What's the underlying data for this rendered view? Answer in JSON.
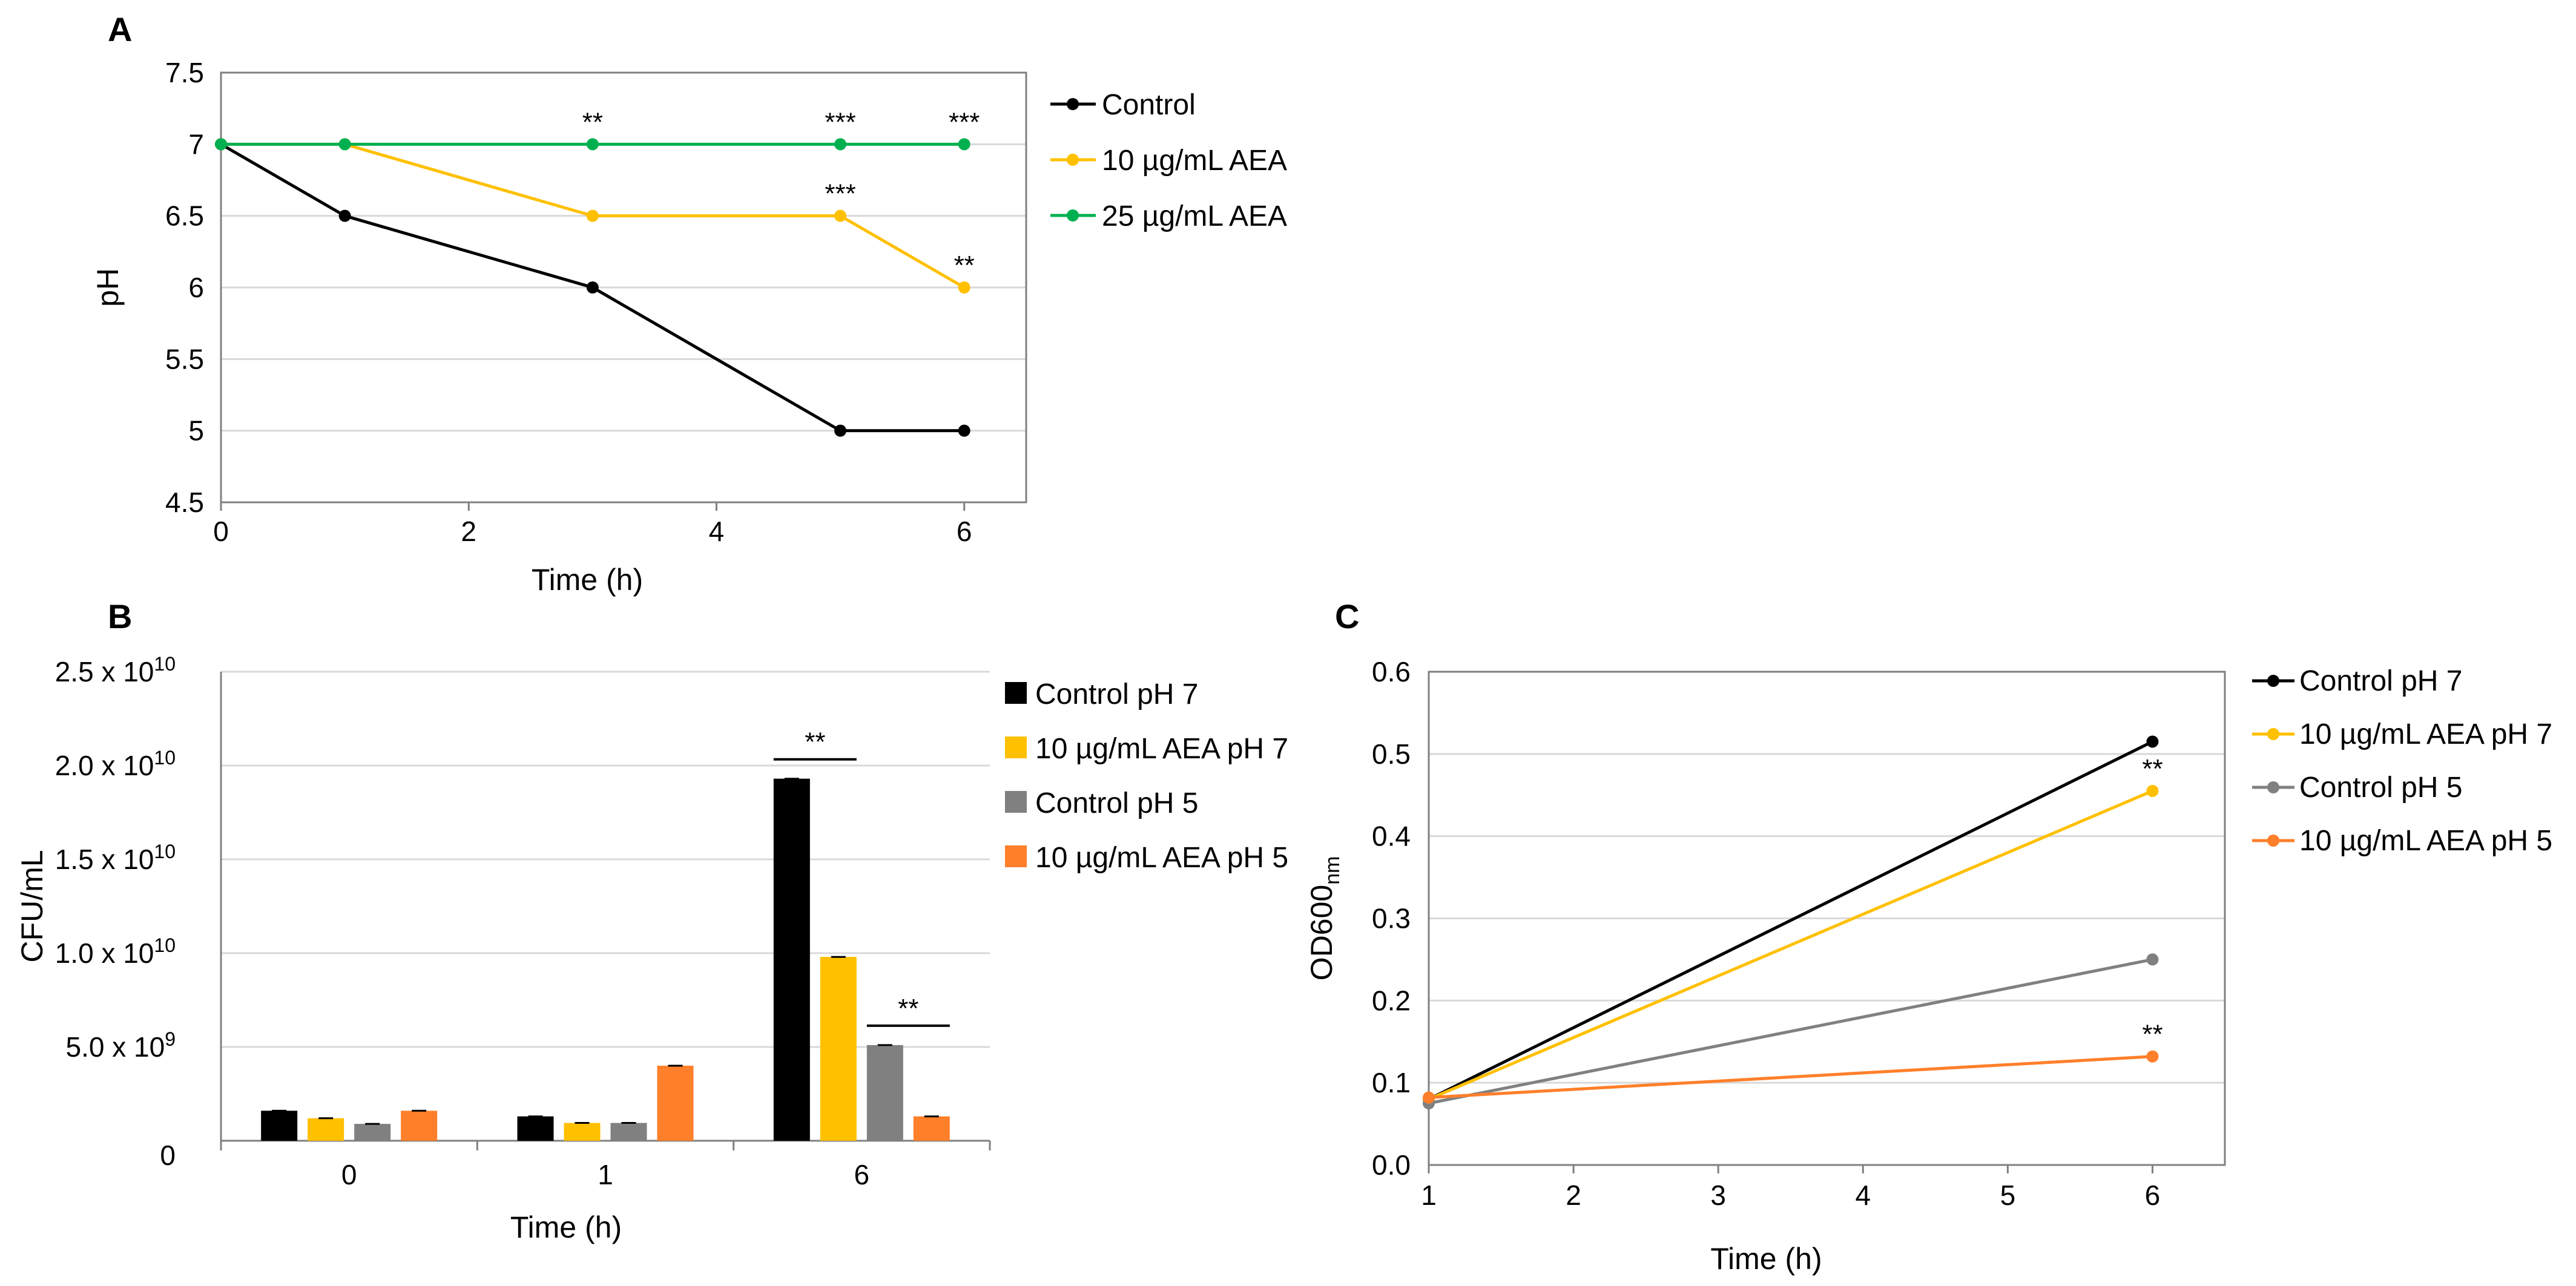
{
  "chart_data": [
    {
      "panel": "A",
      "type": "line",
      "title": "",
      "xlabel": "Time (h)",
      "ylabel": "pH",
      "xlim": [
        0,
        6.5
      ],
      "ylim": [
        4.5,
        7.5
      ],
      "xticks": [
        "0",
        "2",
        "4",
        "6"
      ],
      "yticks": [
        "4.5",
        "5",
        "5.5",
        "6",
        "6.5",
        "7",
        "7.5"
      ],
      "grid": true,
      "legend_position": "right",
      "series": [
        {
          "name": "Control",
          "color": "#000000",
          "x": [
            0,
            1,
            3,
            5,
            6
          ],
          "y": [
            7,
            6.5,
            6,
            5,
            5
          ]
        },
        {
          "name": "10 µg/mL AEA",
          "color": "#FFC000",
          "x": [
            0,
            1,
            3,
            5,
            6
          ],
          "y": [
            7,
            7,
            6.5,
            6.5,
            6
          ]
        },
        {
          "name": "25 µg/mL AEA",
          "color": "#00B050",
          "x": [
            0,
            1,
            3,
            5,
            6
          ],
          "y": [
            7,
            7,
            7,
            7,
            7
          ]
        }
      ],
      "annotations": [
        {
          "text": "**",
          "x": 3,
          "y": 7
        },
        {
          "text": "***",
          "x": 5,
          "y": 7
        },
        {
          "text": "***",
          "x": 6,
          "y": 7
        },
        {
          "text": "***",
          "x": 5,
          "y": 6.5
        },
        {
          "text": "**",
          "x": 6,
          "y": 6
        }
      ]
    },
    {
      "panel": "B",
      "type": "bar",
      "title": "",
      "xlabel": "Time (h)",
      "ylabel": "CFU/mL",
      "categories": [
        "0",
        "1",
        "6"
      ],
      "ylim": [
        0,
        25000000000
      ],
      "yticks": [
        {
          "mant": "0",
          "exp": ""
        },
        {
          "mant": "5.0 x 10",
          "exp": "9"
        },
        {
          "mant": "1.0 x 10",
          "exp": "10"
        },
        {
          "mant": "1.5 x 10",
          "exp": "10"
        },
        {
          "mant": "2.0 x 10",
          "exp": "10"
        },
        {
          "mant": "2.5 x 10",
          "exp": "10"
        }
      ],
      "grid": true,
      "legend_position": "right",
      "series": [
        {
          "name": "Control pH 7",
          "color": "#000000",
          "values": [
            1600000000,
            1300000000,
            19300000000
          ]
        },
        {
          "name": "10 µg/mL AEA pH 7",
          "color": "#FFC000",
          "values": [
            1200000000,
            950000000,
            9800000000
          ]
        },
        {
          "name": "Control pH 5",
          "color": "#808080",
          "values": [
            900000000,
            950000000,
            5100000000
          ]
        },
        {
          "name": "10 µg/mL AEA pH 5",
          "color": "#FF7F2A",
          "values": [
            1600000000,
            4000000000,
            1300000000
          ]
        }
      ],
      "annotations": [
        {
          "text": "**",
          "category": "6",
          "between": [
            "Control pH 7",
            "10 µg/mL AEA pH 7"
          ]
        },
        {
          "text": "**",
          "category": "6",
          "between": [
            "Control pH 5",
            "10 µg/mL AEA pH 5"
          ]
        }
      ]
    },
    {
      "panel": "C",
      "type": "line",
      "title": "",
      "xlabel": "Time (h)",
      "ylabel_main": "OD",
      "ylabel_num": "600",
      "ylabel_sub": "nm",
      "xlim": [
        1,
        6.5
      ],
      "ylim": [
        0,
        0.6
      ],
      "xticks": [
        "1",
        "2",
        "3",
        "4",
        "5",
        "6"
      ],
      "yticks": [
        "0.0",
        "0.1",
        "0.2",
        "0.3",
        "0.4",
        "0.5",
        "0.6"
      ],
      "grid": true,
      "legend_position": "right",
      "series": [
        {
          "name": "Control pH 7",
          "color": "#000000",
          "x": [
            1,
            6
          ],
          "y": [
            0.08,
            0.515
          ]
        },
        {
          "name": "10 µg/mL AEA pH 7",
          "color": "#FFC000",
          "x": [
            1,
            6
          ],
          "y": [
            0.08,
            0.455
          ]
        },
        {
          "name": "Control pH 5",
          "color": "#808080",
          "x": [
            1,
            6
          ],
          "y": [
            0.075,
            0.25
          ]
        },
        {
          "name": "10 µg/mL AEA pH 5",
          "color": "#FF7F2A",
          "x": [
            1,
            6
          ],
          "y": [
            0.082,
            0.132
          ]
        }
      ],
      "annotations": [
        {
          "text": "**",
          "x": 6,
          "y": 0.455
        },
        {
          "text": "**",
          "x": 6,
          "y": 0.132
        }
      ]
    }
  ]
}
